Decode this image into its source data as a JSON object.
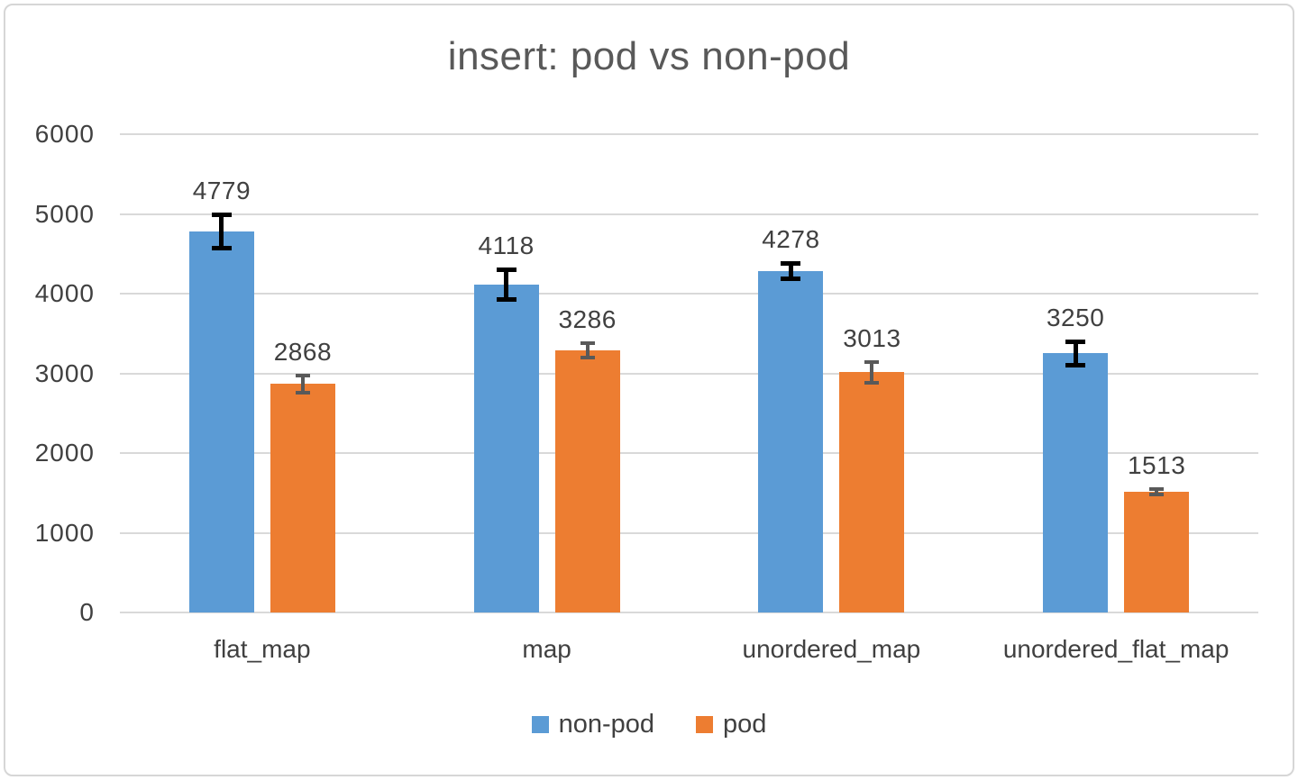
{
  "title": "insert: pod vs non-pod",
  "chart_data": {
    "type": "bar",
    "title": "insert: pod vs non-pod",
    "categories": [
      "flat_map",
      "map",
      "unordered_map",
      "unordered_flat_map"
    ],
    "series": [
      {
        "name": "non-pod",
        "color": "#5B9BD5",
        "error_color": "#000000",
        "values": [
          4779,
          4118,
          4278,
          3250
        ],
        "errors": [
          240,
          215,
          125,
          175
        ]
      },
      {
        "name": "pod",
        "color": "#ED7D31",
        "error_color": "#595959",
        "values": [
          2868,
          3286,
          3013,
          1513
        ],
        "errors": [
          130,
          110,
          155,
          55
        ]
      }
    ],
    "data_labels": [
      [
        "4779",
        "4118",
        "4278",
        "3250"
      ],
      [
        "2868",
        "3286",
        "3013",
        "1513"
      ]
    ],
    "xlabel": "",
    "ylabel": "",
    "ylim": [
      0,
      6000
    ],
    "yticks": [
      0,
      1000,
      2000,
      3000,
      4000,
      5000,
      6000
    ],
    "ytick_labels": [
      "0",
      "1000",
      "2000",
      "3000",
      "4000",
      "5000",
      "6000"
    ],
    "grid": true,
    "error_bars": true,
    "legend_position": "bottom"
  },
  "colors": {
    "background": "#FFFFFF",
    "border": "#D6D6D6",
    "gridline": "#D9D9D9",
    "title_text": "#595959",
    "label_text": "#404040"
  }
}
